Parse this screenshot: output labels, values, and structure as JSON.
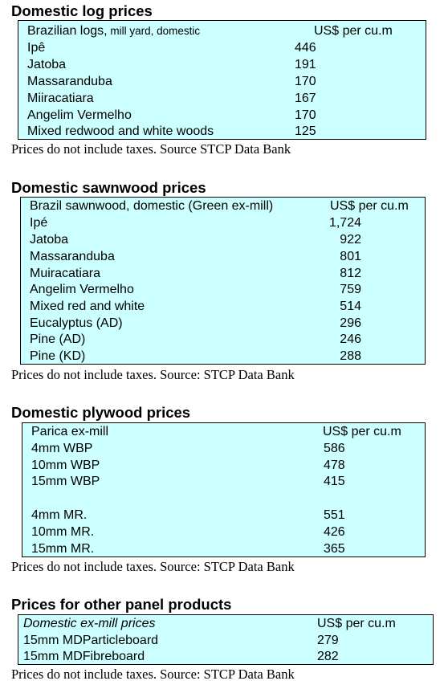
{
  "sections": [
    {
      "title": "Domestic log prices",
      "header": {
        "name_main": "Brazilian logs,",
        "name_sub": " mill yard, domestic",
        "unit": "US$ per cu.m"
      },
      "rows": [
        {
          "name": "Ipê",
          "value": "446"
        },
        {
          "name": "Jatoba",
          "value": "191"
        },
        {
          "name": "Massaranduba",
          "value": "170"
        },
        {
          "name": "Miiracatiara",
          "value": "167"
        },
        {
          "name": "Angelim Vermelho",
          "value": "170"
        },
        {
          "name": "Mixed redwood and white woods",
          "value": "125"
        }
      ],
      "note": "Prices do not include taxes. Source STCP Data Bank"
    },
    {
      "title": "Domestic sawnwood prices",
      "header": {
        "name": "Brazil sawnwood, domestic (Green ex-mill)",
        "unit": "US$ per cu.m"
      },
      "rows": [
        {
          "name": "Ipé",
          "value": "1,724"
        },
        {
          "name": "Jatoba",
          "value": "922"
        },
        {
          "name": "Massaranduba",
          "value": "801"
        },
        {
          "name": "Muiracatiara",
          "value": "812"
        },
        {
          "name": "Angelim Vermelho",
          "value": "759"
        },
        {
          "name": "Mixed red and white",
          "value": "514"
        },
        {
          "name": "Eucalyptus (AD)",
          "value": "296"
        },
        {
          "name": "Pine (AD)",
          "value": "246"
        },
        {
          "name": "Pine (KD)",
          "value": "288"
        }
      ],
      "note": "Prices do not include taxes. Source: STCP Data Bank"
    },
    {
      "title": "Domestic plywood prices",
      "header": {
        "name": "Parica ex-mill",
        "unit": "US$ per cu.m"
      },
      "rows": [
        {
          "name": "4mm WBP",
          "value": "586"
        },
        {
          "name": "10mm WBP",
          "value": "478"
        },
        {
          "name": "15mm WBP",
          "value": "415"
        },
        {
          "name": "4mm MR.",
          "value": "551"
        },
        {
          "name": "10mm MR.",
          "value": "426"
        },
        {
          "name": "15mm MR.",
          "value": "365"
        }
      ],
      "note": "Prices do not include taxes. Source: STCP Data Bank"
    },
    {
      "title": "Prices for other panel products",
      "header": {
        "name": "Domestic ex-mill prices",
        "unit": "US$ per cu.m"
      },
      "rows": [
        {
          "name": "15mm MDParticleboard",
          "value": "279"
        },
        {
          "name": "15mm MDFibreboard",
          "value": "282"
        }
      ],
      "note": "Prices do not include taxes. Source: STCP Data Bank"
    }
  ]
}
